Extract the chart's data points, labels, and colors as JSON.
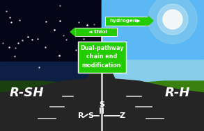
{
  "figsize": [
    2.93,
    1.89
  ],
  "dpi": 100,
  "sign_green": "#22cc00",
  "label_left": "R-SH",
  "label_right": "R-H",
  "sign1_text": "hydrogen",
  "sign2_text": "thiol",
  "sign3_line1": "Dual-pathway",
  "sign3_line2": "chain end",
  "sign3_line3": "modification",
  "pole_color": "#cccccc",
  "night_sky": "#050518",
  "night_mid": "#0a1535",
  "day_sky_top": "#5bb8f5",
  "day_sky_mid": "#87ceeb",
  "grass_left": "#1a4010",
  "grass_right": "#3a8010",
  "road_dark": "#252525",
  "road_mid": "#333333",
  "star_color": "white",
  "label_color": "white",
  "struct_color": "white"
}
